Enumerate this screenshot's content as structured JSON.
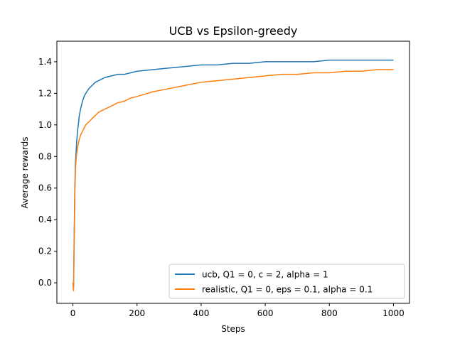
{
  "chart_data": {
    "type": "line",
    "title": "UCB vs Epsilon-greedy",
    "xlabel": "Steps",
    "ylabel": "Average rewards",
    "xlim": [
      -50,
      1050
    ],
    "ylim": [
      -0.13,
      1.53
    ],
    "x_ticks": [
      0,
      200,
      400,
      600,
      800,
      1000
    ],
    "y_ticks": [
      0.0,
      0.2,
      0.4,
      0.6,
      0.8,
      1.0,
      1.2,
      1.4
    ],
    "x_tick_labels": [
      "0",
      "200",
      "400",
      "600",
      "800",
      "1000"
    ],
    "y_tick_labels": [
      "0.0",
      "0.2",
      "0.4",
      "0.6",
      "0.8",
      "1.0",
      "1.2",
      "1.4"
    ],
    "grid": false,
    "legend_position": "lower-right",
    "series": [
      {
        "name": "ucb, Q1 = 0, c = 2, alpha = 1",
        "color": "#1f77b4",
        "x": [
          0,
          2,
          4,
          6,
          8,
          10,
          12,
          15,
          18,
          20,
          25,
          30,
          35,
          40,
          50,
          60,
          70,
          80,
          90,
          100,
          120,
          140,
          160,
          180,
          200,
          250,
          300,
          350,
          400,
          450,
          500,
          550,
          600,
          650,
          700,
          750,
          800,
          850,
          900,
          950,
          1000
        ],
        "values": [
          0.0,
          -0.03,
          0.3,
          0.6,
          0.76,
          0.83,
          0.9,
          0.97,
          1.02,
          1.06,
          1.11,
          1.15,
          1.18,
          1.2,
          1.23,
          1.25,
          1.27,
          1.28,
          1.29,
          1.3,
          1.31,
          1.32,
          1.32,
          1.33,
          1.34,
          1.35,
          1.36,
          1.37,
          1.38,
          1.38,
          1.39,
          1.39,
          1.4,
          1.4,
          1.4,
          1.4,
          1.41,
          1.41,
          1.41,
          1.41,
          1.41
        ]
      },
      {
        "name": "realistic, Q1 = 0, eps = 0.1, alpha = 0.1",
        "color": "#ff7f0e",
        "x": [
          0,
          2,
          4,
          6,
          8,
          10,
          12,
          15,
          18,
          20,
          25,
          30,
          35,
          40,
          50,
          60,
          70,
          80,
          90,
          100,
          120,
          140,
          160,
          180,
          200,
          250,
          300,
          350,
          400,
          450,
          500,
          550,
          600,
          650,
          700,
          750,
          800,
          850,
          900,
          950,
          1000
        ],
        "values": [
          0.0,
          -0.05,
          0.25,
          0.55,
          0.72,
          0.78,
          0.82,
          0.86,
          0.89,
          0.91,
          0.94,
          0.96,
          0.98,
          1.0,
          1.02,
          1.04,
          1.06,
          1.08,
          1.09,
          1.1,
          1.12,
          1.14,
          1.15,
          1.17,
          1.18,
          1.21,
          1.23,
          1.25,
          1.27,
          1.28,
          1.29,
          1.3,
          1.31,
          1.32,
          1.32,
          1.33,
          1.33,
          1.34,
          1.34,
          1.35,
          1.35
        ]
      }
    ]
  }
}
